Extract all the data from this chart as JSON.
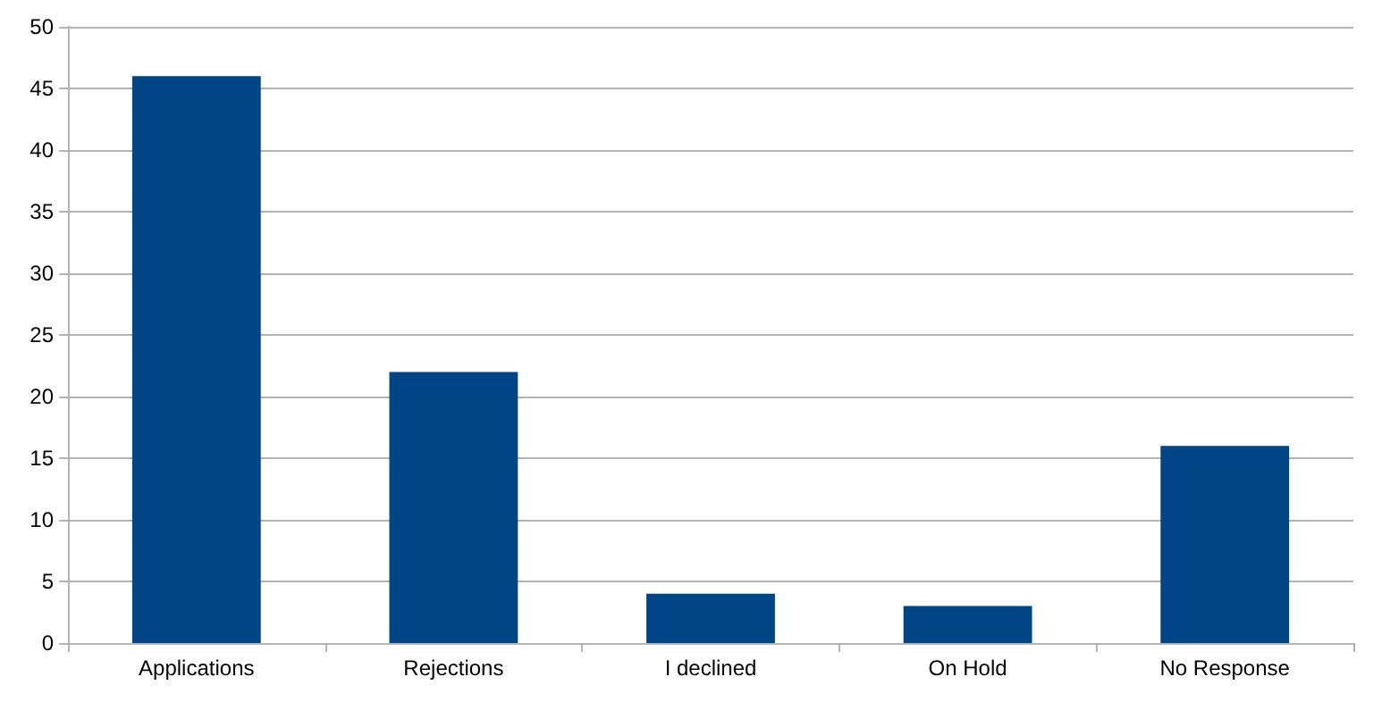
{
  "chart_data": {
    "type": "bar",
    "categories": [
      "Applications",
      "Rejections",
      "I declined",
      "On Hold",
      "No Response"
    ],
    "values": [
      46,
      22,
      4,
      3,
      16
    ],
    "color": "#004586",
    "ylim": [
      0,
      50
    ],
    "yticks": [
      0,
      5,
      10,
      15,
      20,
      25,
      30,
      35,
      40,
      45,
      50
    ],
    "grid": "y"
  }
}
